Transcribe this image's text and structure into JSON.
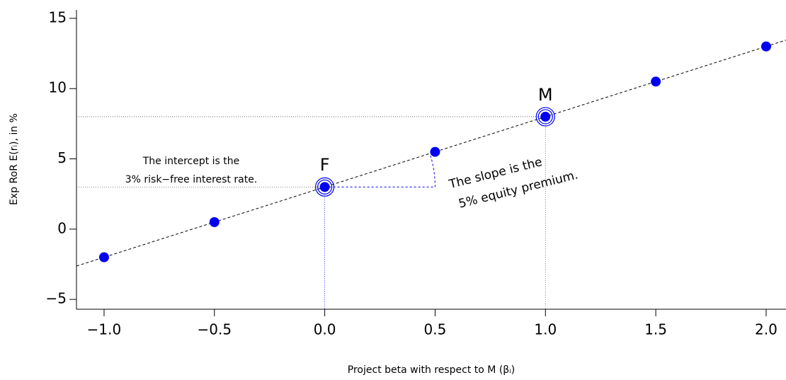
{
  "chart_data": {
    "type": "scatter",
    "x_label": "Project beta with respect to M (βᵢ)",
    "y_label": "Exp RoR E(rᵢ), in %",
    "x": [
      -1,
      -0.5,
      0,
      0.5,
      1,
      1.5,
      2
    ],
    "series": [
      {
        "color": "#0000ee",
        "values": [
          -2,
          0.5,
          3,
          5.5,
          8,
          10.5,
          13
        ]
      }
    ],
    "xlim": [
      -1.125,
      2.09
    ],
    "ylim": [
      -5.7,
      15.6
    ],
    "xticks": [
      {
        "value": -1,
        "label": "−1.0"
      },
      {
        "value": -0.5,
        "label": "−0.5"
      },
      {
        "value": 0,
        "label": "0.0"
      },
      0.5,
      {
        "value": 1,
        "label": "1.0"
      },
      1.5,
      {
        "value": 2,
        "label": "2.0"
      }
    ],
    "yticks": [
      {
        "value": -5,
        "label": "−5"
      },
      0,
      5,
      10,
      15
    ],
    "annotations": [
      "F",
      "M",
      "The intercept is the",
      "3% risk−free interest rate.",
      "The slope is the",
      "5% equity premium."
    ]
  }
}
